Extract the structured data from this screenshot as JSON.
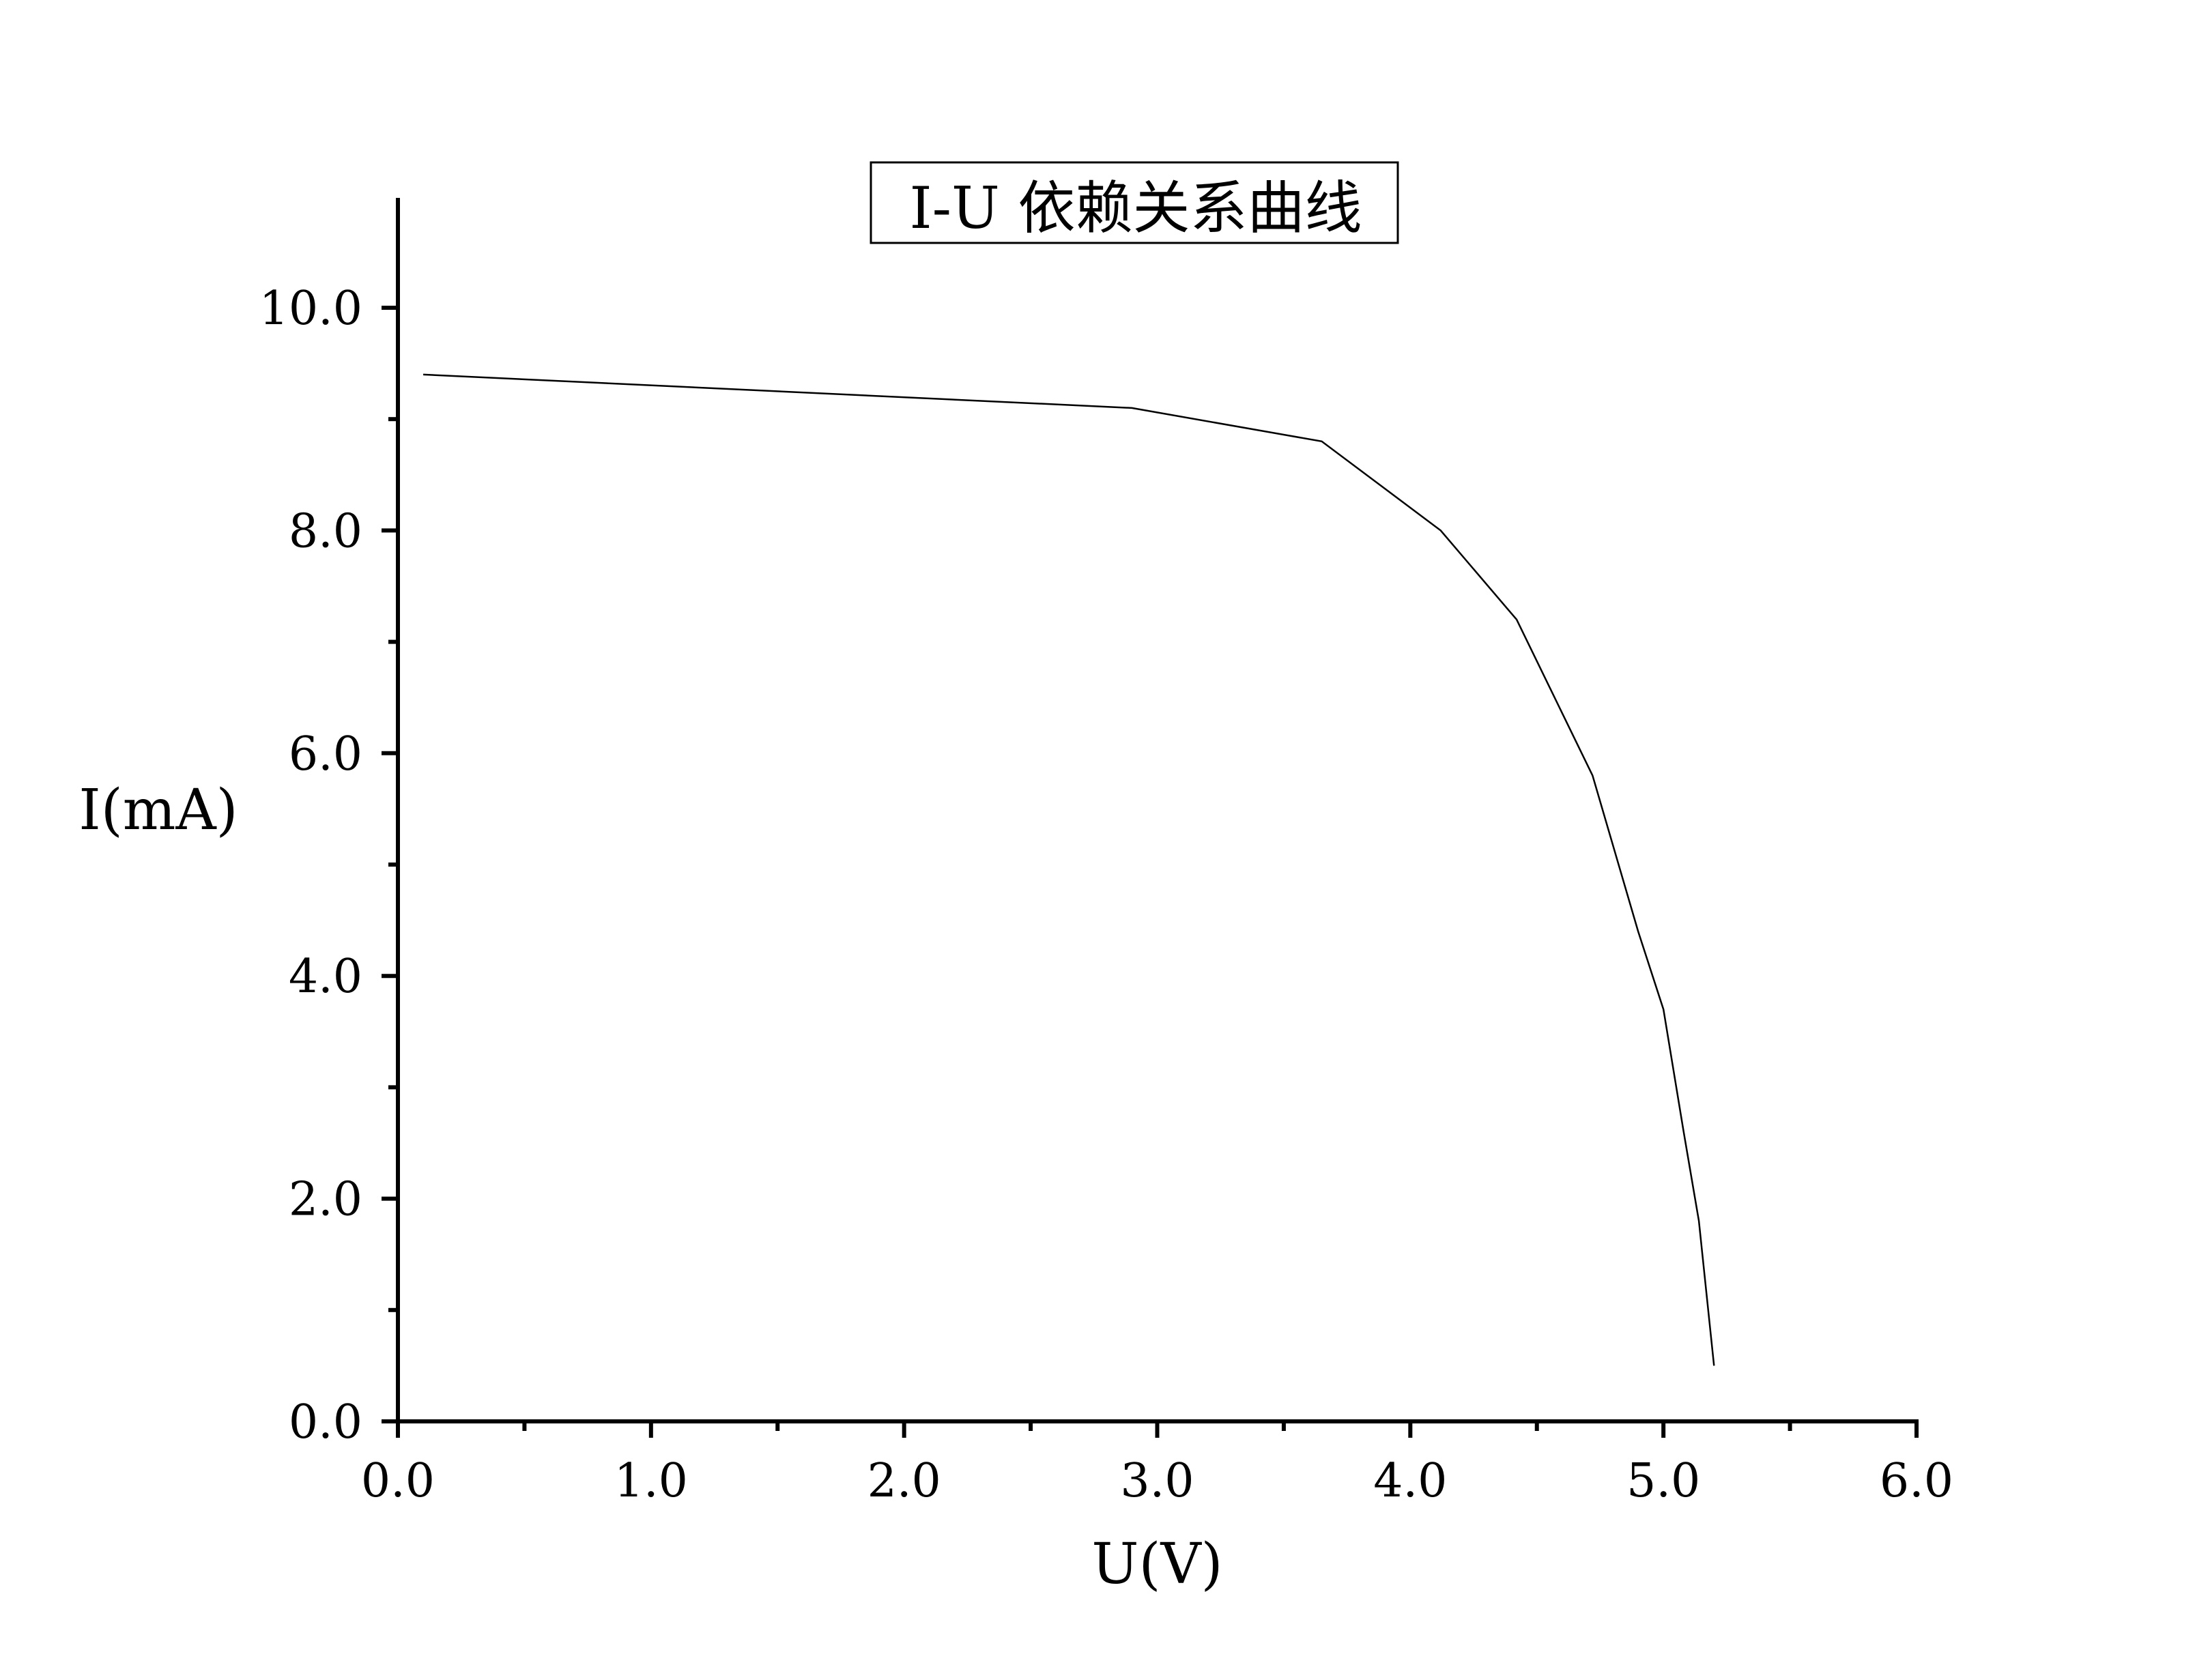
{
  "chart_data": {
    "type": "line",
    "title": "I-U 依赖关系曲线",
    "xlabel": "U(V)",
    "ylabel": "I(mA)",
    "xlim": [
      0,
      6
    ],
    "ylim": [
      0,
      11
    ],
    "x_ticks": [
      0,
      1,
      2,
      3,
      4,
      5,
      6
    ],
    "x_tick_labels": [
      "0.0",
      "1.0",
      "2.0",
      "3.0",
      "4.0",
      "5.0",
      "6.0"
    ],
    "y_ticks": [
      0,
      2,
      4,
      6,
      8,
      10
    ],
    "y_tick_labels": [
      "0.0",
      "2.0",
      "4.0",
      "6.0",
      "8.0",
      "10.0"
    ],
    "x_minor_ticks": [
      0.5,
      1.5,
      2.5,
      3.5,
      4.5,
      5.5
    ],
    "y_minor_ticks": [
      1,
      3,
      5,
      7,
      9
    ],
    "grid": false,
    "line_color": "#000000",
    "series": [
      {
        "x": [
          0.1,
          2.9,
          3.65,
          4.12,
          4.42,
          4.72,
          4.9,
          5.0,
          5.08,
          5.14,
          5.2
        ],
        "y": [
          9.4,
          9.1,
          8.8,
          8.0,
          7.2,
          5.8,
          4.4,
          3.7,
          2.6,
          1.8,
          0.5
        ]
      }
    ]
  }
}
